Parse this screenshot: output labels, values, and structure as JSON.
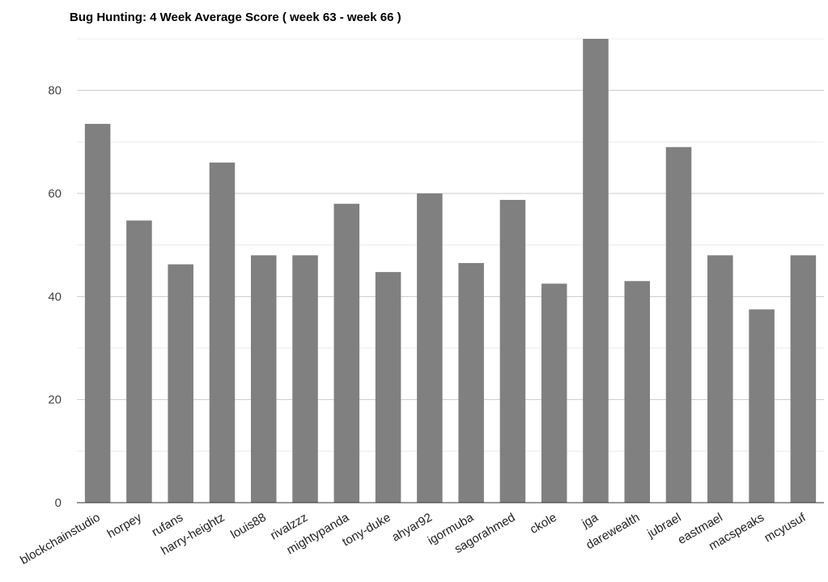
{
  "chart_data": {
    "type": "bar",
    "title": "Bug Hunting: 4 Week Average Score ( week 63 - week 66 )",
    "xlabel": "",
    "ylabel": "",
    "categories": [
      "blockchainstudio",
      "horpey",
      "rufans",
      "harry-heightz",
      "louis88",
      "rivalzzz",
      "mightypanda",
      "tony-duke",
      "ahyar92",
      "igormuba",
      "sagorahmed",
      "ckole",
      "jga",
      "darewealth",
      "jubrael",
      "eastmael",
      "macspeaks",
      "mcyusuf"
    ],
    "values": [
      73.5,
      54.75,
      46.25,
      66,
      48,
      48,
      58,
      44.75,
      60,
      46.5,
      58.75,
      42.5,
      90,
      43,
      69,
      48,
      37.5,
      48
    ],
    "ylim": [
      0,
      90
    ],
    "yticks": [
      "0",
      "20",
      "40",
      "60",
      "80"
    ],
    "ytick_values": [
      0,
      20,
      40,
      60,
      80
    ],
    "minor_gridlines": [
      10,
      30,
      50,
      70,
      90
    ],
    "grid": true,
    "legend": "none",
    "colors": {
      "bar": "#808080",
      "major_grid": "#cccccc",
      "minor_grid": "#ebebeb",
      "axis": "#333333"
    }
  }
}
